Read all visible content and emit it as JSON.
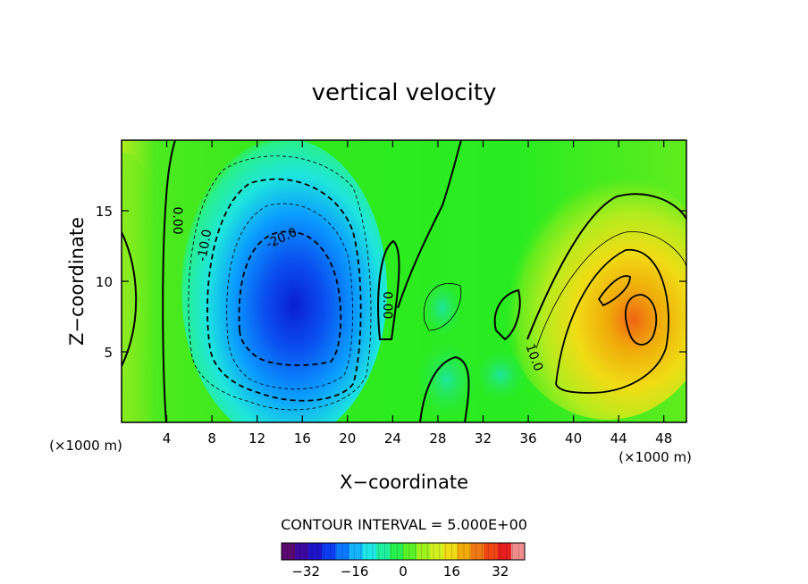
{
  "chart_data": {
    "type": "heatmap",
    "title": "vertical velocity",
    "xlabel": "X−coordinate",
    "ylabel": "Z−coordinate",
    "x_unit_left": "(×1000 m)",
    "x_unit_right": "(×1000 m)",
    "x_ticks": [
      4,
      8,
      12,
      16,
      20,
      24,
      28,
      32,
      36,
      40,
      44,
      48
    ],
    "x_tick_labels": [
      "4",
      "8",
      "12",
      "16",
      "20",
      "24",
      "28",
      "32",
      "36",
      "40",
      "44",
      "48"
    ],
    "y_ticks": [
      5,
      10,
      15
    ],
    "y_tick_labels": [
      "5",
      "10",
      "15"
    ],
    "xlim": [
      0,
      50
    ],
    "ylim": [
      0,
      20
    ],
    "grid": false,
    "field": {
      "description": "vertical velocity field",
      "cells": [
        {
          "x": 15.5,
          "z": 8.5,
          "value": -32
        },
        {
          "x": 13.0,
          "z": 11.0,
          "value": -24
        },
        {
          "x": 25.0,
          "z": 3.0,
          "value": -4
        },
        {
          "x": 29.0,
          "z": 2.8,
          "value": -6
        },
        {
          "x": 45.5,
          "z": 7.5,
          "value": 20
        },
        {
          "x": 44.0,
          "z": 10.5,
          "value": 14
        },
        {
          "x": 0.5,
          "z": 9.0,
          "value": 8
        }
      ]
    },
    "contours": {
      "interval": 5.0,
      "labels": [
        {
          "text": "0.00",
          "x": 4.6,
          "z": 14.3
        },
        {
          "text": "-10.0",
          "x": 7.7,
          "z": 12.5
        },
        {
          "text": "-20.0",
          "x": 14.3,
          "z": 12.8
        },
        {
          "text": "0.00",
          "x": 23.2,
          "z": 8.3
        },
        {
          "text": "10.0",
          "x": 36.2,
          "z": 4.5
        }
      ]
    },
    "contour_interval_label": "CONTOUR INTERVAL = 5.000E+00",
    "colorbar": {
      "ticks": [
        -32,
        -16,
        0,
        16,
        32
      ],
      "tick_labels": [
        "−32",
        "−16",
        "0",
        "16",
        "32"
      ],
      "range": [
        -40,
        40
      ],
      "colors": [
        "#5a0a6e",
        "#3c0aa0",
        "#1e14c8",
        "#0a3cf0",
        "#0a78ff",
        "#14b4ff",
        "#1ee6e6",
        "#1ef0a0",
        "#28f050",
        "#5af028",
        "#a0f01e",
        "#d2f01e",
        "#f0dc14",
        "#f0aa0a",
        "#f07814",
        "#f04614",
        "#e61e1e",
        "#f08c8c"
      ]
    }
  }
}
